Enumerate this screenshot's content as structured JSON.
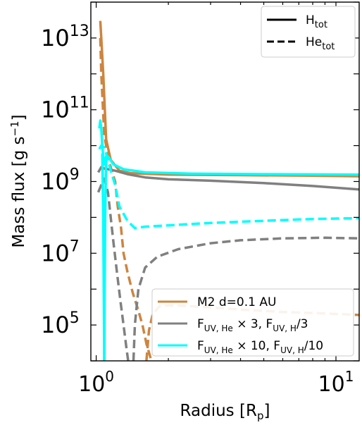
{
  "chart_data": {
    "type": "line",
    "title": "",
    "xlabel": {
      "base": "Radius [R",
      "sub": "p",
      "tail": "]"
    },
    "ylabel": {
      "base": "Mass flux [g s",
      "sup": "−1",
      "tail": "]"
    },
    "xscale": "log",
    "yscale": "log",
    "xlim": [
      0.95,
      12.5
    ],
    "ylim": [
      10000.0,
      100000000000000.0
    ],
    "x_ticks": [
      {
        "value": 1,
        "base": "10",
        "exp": "0"
      },
      {
        "value": 10,
        "base": "10",
        "exp": "1"
      }
    ],
    "y_ticks": [
      {
        "value": 100000.0,
        "base": "10",
        "exp": "5"
      },
      {
        "value": 10000000.0,
        "base": "10",
        "exp": "7"
      },
      {
        "value": 1000000000.0,
        "base": "10",
        "exp": "9"
      },
      {
        "value": 100000000000.0,
        "base": "10",
        "exp": "11"
      },
      {
        "value": 10000000000000.0,
        "base": "10",
        "exp": "13"
      }
    ],
    "grid": false,
    "style_legend": {
      "placement": "top-right",
      "entries": [
        {
          "dash": "solid",
          "base": "H",
          "sub": "tot"
        },
        {
          "dash": "dashed",
          "base": "He",
          "sub": "tot"
        }
      ]
    },
    "color_legend": {
      "placement": "bottom-right",
      "entries": [
        {
          "color": "#cd853f",
          "parts": [
            {
              "t": "M2 d=0.1 AU"
            }
          ]
        },
        {
          "color": "#808080",
          "parts": [
            {
              "t": "F"
            },
            {
              "t": "UV, He",
              "sub": true
            },
            {
              "t": " × 3, F"
            },
            {
              "t": "UV, H",
              "sub": true
            },
            {
              "t": "/3"
            }
          ]
        },
        {
          "color": "#00ffff",
          "parts": [
            {
              "t": "F"
            },
            {
              "t": "UV, He",
              "sub": true
            },
            {
              "t": " × 10, F"
            },
            {
              "t": "UV, H",
              "sub": true
            },
            {
              "t": "/10"
            }
          ]
        }
      ]
    },
    "series": [
      {
        "color": "#cd853f",
        "dash": "solid",
        "points": [
          [
            1.04,
            30000000000000.0
          ],
          [
            1.05,
            10000000000000.0
          ],
          [
            1.07,
            1000000000000.0
          ],
          [
            1.1,
            15000000000.0
          ],
          [
            1.15,
            4000000000.0
          ],
          [
            1.25,
            2000000000.0
          ],
          [
            1.4,
            1700000000.0
          ],
          [
            2,
            1550000000.0
          ],
          [
            4,
            1500000000.0
          ],
          [
            8,
            1450000000.0
          ],
          [
            12.5,
            1400000000.0
          ]
        ]
      },
      {
        "color": "#cd853f",
        "dash": "dashed",
        "points": [
          [
            1.04,
            10000000000000.0
          ],
          [
            1.05,
            1000000000000.0
          ],
          [
            1.08,
            20000000000.0
          ],
          [
            1.12,
            5000000000.0
          ],
          [
            1.16,
            2000000000.0
          ],
          [
            1.2,
            1000000000.0
          ],
          [
            1.23,
            200000000.0
          ],
          [
            1.27,
            50000000.0
          ],
          [
            1.3,
            10000000.0
          ],
          [
            1.35,
            3000000.0
          ],
          [
            1.42,
            800000.0
          ],
          [
            1.5,
            250000.0
          ],
          [
            1.56,
            100000.0
          ],
          [
            1.62,
            30000.0
          ],
          [
            1.7,
            10000.0
          ]
        ]
      },
      {
        "color": "#cd853f",
        "dash": "dashed",
        "points": [
          [
            1.62,
            10000.0
          ],
          [
            1.66,
            70000.0
          ],
          [
            1.72,
            200000.0
          ],
          [
            1.85,
            350000.0
          ],
          [
            2.2,
            350000.0
          ],
          [
            3,
            310000.0
          ],
          [
            4,
            270000.0
          ],
          [
            6,
            230000.0
          ],
          [
            9,
            210000.0
          ],
          [
            12.5,
            190000.0
          ]
        ]
      },
      {
        "color": "#808080",
        "dash": "solid",
        "points": [
          [
            1.02,
            1800000000.0
          ],
          [
            1.05,
            2500000000.0
          ],
          [
            1.08,
            2300000000.0
          ],
          [
            1.12,
            2200000000.0
          ],
          [
            1.2,
            2000000000.0
          ],
          [
            1.35,
            1600000000.0
          ],
          [
            1.6,
            1300000000.0
          ],
          [
            2,
            1150000000.0
          ],
          [
            3,
            1050000000.0
          ],
          [
            5,
            900000000.0
          ],
          [
            8,
            750000000.0
          ],
          [
            12.5,
            600000000.0
          ]
        ]
      },
      {
        "color": "#808080",
        "dash": "dashed",
        "points": [
          [
            1.02,
            500000000.0
          ],
          [
            1.05,
            800000000.0
          ],
          [
            1.08,
            1200000000.0
          ],
          [
            1.12,
            500000000.0
          ],
          [
            1.15,
            100000000.0
          ],
          [
            1.18,
            20000000.0
          ],
          [
            1.22,
            3000000.0
          ],
          [
            1.26,
            500000.0
          ],
          [
            1.3,
            100000.0
          ],
          [
            1.34,
            20000.0
          ],
          [
            1.36,
            10000.0
          ]
        ]
      },
      {
        "color": "#808080",
        "dash": "dashed",
        "points": [
          [
            1.43,
            10000.0
          ],
          [
            1.45,
            100000.0
          ],
          [
            1.5,
            1000000.0
          ],
          [
            1.6,
            4000000.0
          ],
          [
            1.8,
            8000000.0
          ],
          [
            2.2,
            13000000.0
          ],
          [
            3,
            19000000.0
          ],
          [
            4,
            23000000.0
          ],
          [
            6,
            26000000.0
          ],
          [
            9,
            27000000.0
          ],
          [
            12.5,
            26000000.0
          ]
        ]
      },
      {
        "color": "#00ffff",
        "dash": "solid",
        "points": [
          [
            1.03,
            30000000000.0
          ],
          [
            1.04,
            50000000000.0
          ],
          [
            1.05,
            30000000000.0
          ],
          [
            1.06,
            10000000000.0
          ],
          [
            1.07,
            5000000000.0
          ],
          [
            1.08,
            3000000000.0
          ],
          [
            1.1,
            5000000000.0
          ],
          [
            1.12,
            5000000000.0
          ],
          [
            1.18,
            3000000000.0
          ],
          [
            1.3,
            2200000000.0
          ],
          [
            1.6,
            1800000000.0
          ],
          [
            2.5,
            1650000000.0
          ],
          [
            5,
            1600000000.0
          ],
          [
            12.5,
            1550000000.0
          ]
        ]
      },
      {
        "color": "#00ffff",
        "dash": "solid",
        "points": [
          [
            1.06,
            6000000000.0
          ],
          [
            1.07,
            100000000.0
          ],
          [
            1.075,
            1000000.0
          ],
          [
            1.08,
            10000.0
          ]
        ]
      },
      {
        "color": "#00ffff",
        "dash": "solid",
        "points": [
          [
            1.08,
            10000.0
          ],
          [
            1.085,
            1000000.0
          ],
          [
            1.09,
            100000000.0
          ],
          [
            1.1,
            5000000000.0
          ]
        ]
      },
      {
        "color": "#00ffff",
        "dash": "dashed",
        "points": [
          [
            1.03,
            8000000000.0
          ],
          [
            1.05,
            10000000000.0
          ],
          [
            1.08,
            9000000000.0
          ],
          [
            1.1,
            6000000000.0
          ],
          [
            1.15,
            2000000000.0
          ],
          [
            1.2,
            800000000.0
          ],
          [
            1.25,
            200000000.0
          ],
          [
            1.35,
            80000000.0
          ],
          [
            1.45,
            50000000.0
          ],
          [
            1.6,
            55000000.0
          ],
          [
            2,
            60000000.0
          ],
          [
            3,
            70000000.0
          ],
          [
            5,
            80000000.0
          ],
          [
            8,
            90000000.0
          ],
          [
            12.5,
            95000000.0
          ]
        ]
      }
    ]
  }
}
